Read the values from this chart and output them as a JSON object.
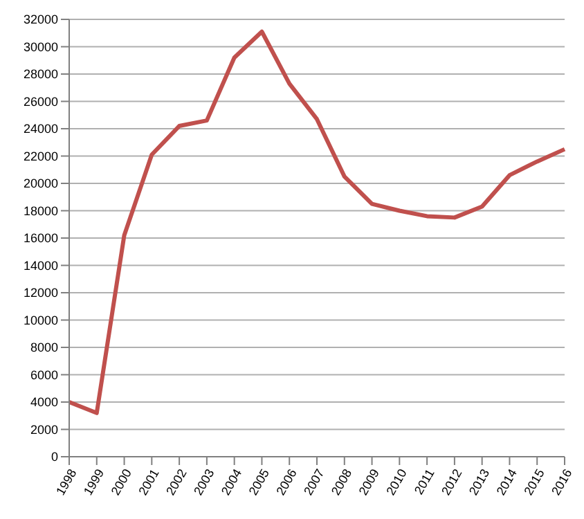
{
  "chart_data": {
    "type": "line",
    "categories": [
      "1998",
      "1999",
      "2000",
      "2001",
      "2002",
      "2003",
      "2004",
      "2005",
      "2006",
      "2007",
      "2008",
      "2009",
      "2010",
      "2011",
      "2012",
      "2013",
      "2014",
      "2015",
      "2016"
    ],
    "series": [
      {
        "color": "#c0504d",
        "values": [
          4000,
          3200,
          16200,
          22100,
          24200,
          24600,
          29200,
          31100,
          27300,
          24700,
          20500,
          18500,
          18000,
          17600,
          17500,
          18300,
          20600,
          21600,
          22500
        ]
      }
    ],
    "ylim": [
      0,
      32000
    ],
    "yticks": [
      0,
      2000,
      4000,
      6000,
      8000,
      10000,
      12000,
      14000,
      16000,
      18000,
      20000,
      22000,
      24000,
      26000,
      28000,
      30000,
      32000
    ],
    "grid": "y",
    "marker": "none",
    "line_style": "solid",
    "legend": false
  }
}
